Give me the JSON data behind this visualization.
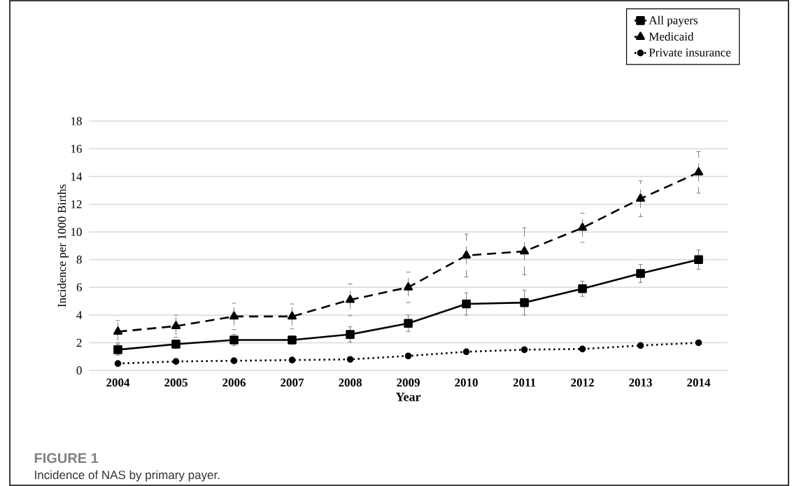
{
  "chart_data": {
    "type": "line",
    "xlabel": "Year",
    "ylabel": "Incidence per 1000 Births",
    "categories": [
      "2004",
      "2005",
      "2006",
      "2007",
      "2008",
      "2009",
      "2010",
      "2011",
      "2012",
      "2013",
      "2014"
    ],
    "series": [
      {
        "name": "All payers",
        "color": "#000000",
        "marker": "square",
        "line_style": "solid",
        "values": [
          1.5,
          1.9,
          2.2,
          2.2,
          2.6,
          3.4,
          4.8,
          4.9,
          5.9,
          7.0,
          8.0
        ],
        "errors": [
          0.4,
          0.3,
          0.4,
          0.3,
          0.55,
          0.6,
          0.8,
          0.9,
          0.55,
          0.65,
          0.7
        ]
      },
      {
        "name": "Medicaid",
        "color": "#000000",
        "marker": "triangle",
        "line_style": "dashed",
        "values": [
          2.8,
          3.2,
          3.9,
          3.9,
          5.1,
          6.0,
          8.3,
          8.6,
          10.3,
          12.4,
          14.3
        ],
        "errors": [
          0.8,
          0.8,
          0.95,
          0.9,
          1.15,
          1.1,
          1.55,
          1.7,
          1.05,
          1.3,
          1.5
        ]
      },
      {
        "name": "Private insurance",
        "color": "#000000",
        "marker": "circle",
        "line_style": "dotted",
        "values": [
          0.5,
          0.65,
          0.7,
          0.75,
          0.8,
          1.05,
          1.35,
          1.5,
          1.55,
          1.8,
          2.0
        ]
      }
    ],
    "ylim": [
      0,
      18
    ],
    "yticks": [
      0,
      2,
      4,
      6,
      8,
      10,
      12,
      14,
      16,
      18
    ],
    "grid": "y",
    "legend": "top right",
    "annotations": [
      "FIGURE 1",
      "Incidence of NAS by primary payer."
    ]
  }
}
